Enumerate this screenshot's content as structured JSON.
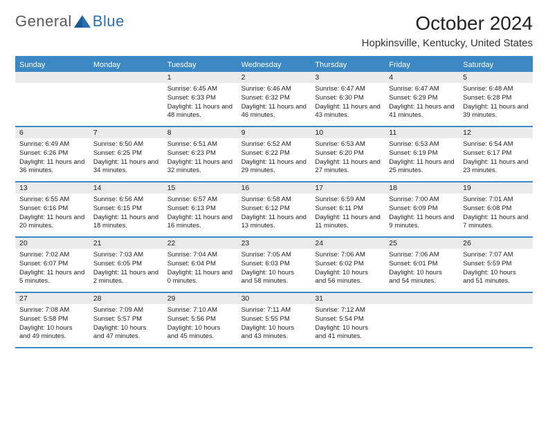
{
  "logo": {
    "part1": "General",
    "part2": "Blue"
  },
  "title": "October 2024",
  "location": "Hopkinsville, Kentucky, United States",
  "colors": {
    "header_blue": "#3b88c4",
    "grey_row": "#eaeaea",
    "logo_grey": "#5b5b5b",
    "logo_blue": "#2a6fb5"
  },
  "dayNames": [
    "Sunday",
    "Monday",
    "Tuesday",
    "Wednesday",
    "Thursday",
    "Friday",
    "Saturday"
  ],
  "weeks": [
    [
      {
        "n": "",
        "lines": []
      },
      {
        "n": "",
        "lines": []
      },
      {
        "n": "1",
        "lines": [
          "Sunrise: 6:45 AM",
          "Sunset: 6:33 PM",
          "Daylight: 11 hours and 48 minutes."
        ]
      },
      {
        "n": "2",
        "lines": [
          "Sunrise: 6:46 AM",
          "Sunset: 6:32 PM",
          "Daylight: 11 hours and 46 minutes."
        ]
      },
      {
        "n": "3",
        "lines": [
          "Sunrise: 6:47 AM",
          "Sunset: 6:30 PM",
          "Daylight: 11 hours and 43 minutes."
        ]
      },
      {
        "n": "4",
        "lines": [
          "Sunrise: 6:47 AM",
          "Sunset: 6:29 PM",
          "Daylight: 11 hours and 41 minutes."
        ]
      },
      {
        "n": "5",
        "lines": [
          "Sunrise: 6:48 AM",
          "Sunset: 6:28 PM",
          "Daylight: 11 hours and 39 minutes."
        ]
      }
    ],
    [
      {
        "n": "6",
        "lines": [
          "Sunrise: 6:49 AM",
          "Sunset: 6:26 PM",
          "Daylight: 11 hours and 36 minutes."
        ]
      },
      {
        "n": "7",
        "lines": [
          "Sunrise: 6:50 AM",
          "Sunset: 6:25 PM",
          "Daylight: 11 hours and 34 minutes."
        ]
      },
      {
        "n": "8",
        "lines": [
          "Sunrise: 6:51 AM",
          "Sunset: 6:23 PM",
          "Daylight: 11 hours and 32 minutes."
        ]
      },
      {
        "n": "9",
        "lines": [
          "Sunrise: 6:52 AM",
          "Sunset: 6:22 PM",
          "Daylight: 11 hours and 29 minutes."
        ]
      },
      {
        "n": "10",
        "lines": [
          "Sunrise: 6:53 AM",
          "Sunset: 6:20 PM",
          "Daylight: 11 hours and 27 minutes."
        ]
      },
      {
        "n": "11",
        "lines": [
          "Sunrise: 6:53 AM",
          "Sunset: 6:19 PM",
          "Daylight: 11 hours and 25 minutes."
        ]
      },
      {
        "n": "12",
        "lines": [
          "Sunrise: 6:54 AM",
          "Sunset: 6:17 PM",
          "Daylight: 11 hours and 23 minutes."
        ]
      }
    ],
    [
      {
        "n": "13",
        "lines": [
          "Sunrise: 6:55 AM",
          "Sunset: 6:16 PM",
          "Daylight: 11 hours and 20 minutes."
        ]
      },
      {
        "n": "14",
        "lines": [
          "Sunrise: 6:56 AM",
          "Sunset: 6:15 PM",
          "Daylight: 11 hours and 18 minutes."
        ]
      },
      {
        "n": "15",
        "lines": [
          "Sunrise: 6:57 AM",
          "Sunset: 6:13 PM",
          "Daylight: 11 hours and 16 minutes."
        ]
      },
      {
        "n": "16",
        "lines": [
          "Sunrise: 6:58 AM",
          "Sunset: 6:12 PM",
          "Daylight: 11 hours and 13 minutes."
        ]
      },
      {
        "n": "17",
        "lines": [
          "Sunrise: 6:59 AM",
          "Sunset: 6:11 PM",
          "Daylight: 11 hours and 11 minutes."
        ]
      },
      {
        "n": "18",
        "lines": [
          "Sunrise: 7:00 AM",
          "Sunset: 6:09 PM",
          "Daylight: 11 hours and 9 minutes."
        ]
      },
      {
        "n": "19",
        "lines": [
          "Sunrise: 7:01 AM",
          "Sunset: 6:08 PM",
          "Daylight: 11 hours and 7 minutes."
        ]
      }
    ],
    [
      {
        "n": "20",
        "lines": [
          "Sunrise: 7:02 AM",
          "Sunset: 6:07 PM",
          "Daylight: 11 hours and 5 minutes."
        ]
      },
      {
        "n": "21",
        "lines": [
          "Sunrise: 7:03 AM",
          "Sunset: 6:05 PM",
          "Daylight: 11 hours and 2 minutes."
        ]
      },
      {
        "n": "22",
        "lines": [
          "Sunrise: 7:04 AM",
          "Sunset: 6:04 PM",
          "Daylight: 11 hours and 0 minutes."
        ]
      },
      {
        "n": "23",
        "lines": [
          "Sunrise: 7:05 AM",
          "Sunset: 6:03 PM",
          "Daylight: 10 hours and 58 minutes."
        ]
      },
      {
        "n": "24",
        "lines": [
          "Sunrise: 7:06 AM",
          "Sunset: 6:02 PM",
          "Daylight: 10 hours and 56 minutes."
        ]
      },
      {
        "n": "25",
        "lines": [
          "Sunrise: 7:06 AM",
          "Sunset: 6:01 PM",
          "Daylight: 10 hours and 54 minutes."
        ]
      },
      {
        "n": "26",
        "lines": [
          "Sunrise: 7:07 AM",
          "Sunset: 5:59 PM",
          "Daylight: 10 hours and 51 minutes."
        ]
      }
    ],
    [
      {
        "n": "27",
        "lines": [
          "Sunrise: 7:08 AM",
          "Sunset: 5:58 PM",
          "Daylight: 10 hours and 49 minutes."
        ]
      },
      {
        "n": "28",
        "lines": [
          "Sunrise: 7:09 AM",
          "Sunset: 5:57 PM",
          "Daylight: 10 hours and 47 minutes."
        ]
      },
      {
        "n": "29",
        "lines": [
          "Sunrise: 7:10 AM",
          "Sunset: 5:56 PM",
          "Daylight: 10 hours and 45 minutes."
        ]
      },
      {
        "n": "30",
        "lines": [
          "Sunrise: 7:11 AM",
          "Sunset: 5:55 PM",
          "Daylight: 10 hours and 43 minutes."
        ]
      },
      {
        "n": "31",
        "lines": [
          "Sunrise: 7:12 AM",
          "Sunset: 5:54 PM",
          "Daylight: 10 hours and 41 minutes."
        ]
      },
      {
        "n": "",
        "lines": []
      },
      {
        "n": "",
        "lines": []
      }
    ]
  ]
}
